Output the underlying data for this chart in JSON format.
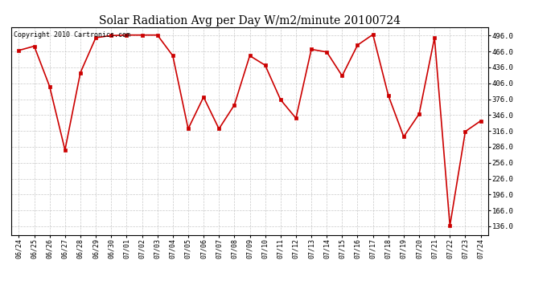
{
  "title": "Solar Radiation Avg per Day W/m2/minute 20100724",
  "copyright_text": "Copyright 2010 Cartronics.com",
  "dates": [
    "06/24",
    "06/25",
    "06/26",
    "06/27",
    "06/28",
    "06/29",
    "06/30",
    "07/01",
    "07/02",
    "07/03",
    "07/04",
    "07/05",
    "07/06",
    "07/07",
    "07/08",
    "07/09",
    "07/10",
    "07/11",
    "07/12",
    "07/13",
    "07/14",
    "07/15",
    "07/16",
    "07/17",
    "07/18",
    "07/19",
    "07/20",
    "07/21",
    "07/22",
    "07/23",
    "07/24"
  ],
  "values": [
    468,
    476,
    400,
    280,
    426,
    492,
    496,
    497,
    497,
    497,
    458,
    320,
    380,
    320,
    365,
    458,
    440,
    375,
    340,
    470,
    465,
    420,
    478,
    498,
    383,
    305,
    348,
    492,
    137,
    315,
    335
  ],
  "y_ticks": [
    136.0,
    166.0,
    196.0,
    226.0,
    256.0,
    286.0,
    316.0,
    346.0,
    376.0,
    406.0,
    436.0,
    466.0,
    496.0
  ],
  "y_min": 120,
  "y_max": 512,
  "line_color": "#cc0000",
  "marker_color": "#cc0000",
  "bg_color": "#ffffff",
  "plot_bg_color": "#ffffff",
  "grid_color": "#bbbbbb",
  "title_fontsize": 10,
  "copyright_fontsize": 6,
  "tick_fontsize": 6,
  "ytick_fontsize": 6.5
}
